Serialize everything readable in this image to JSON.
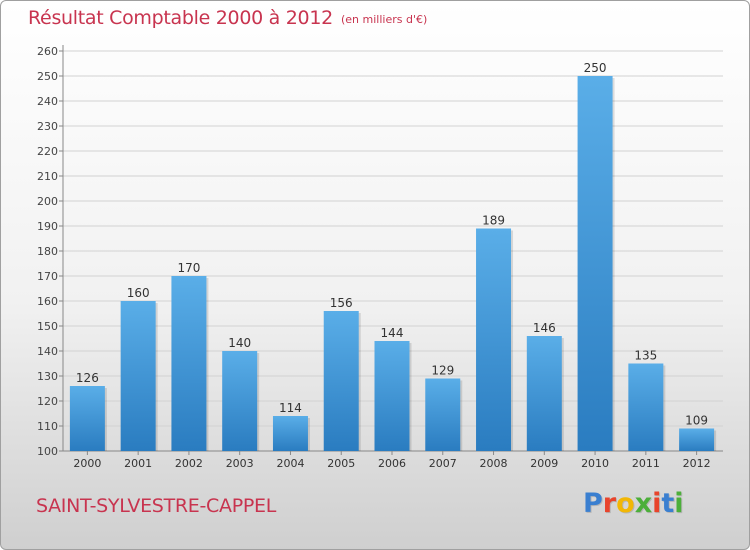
{
  "header": {
    "title": "Résultat Comptable 2000 à 2012",
    "subtitle": "(en milliers d'€)"
  },
  "footer": {
    "commune": "SAINT-SYLVESTRE-CAPPEL",
    "logo_text": "Proxiti",
    "logo_colors": [
      "#3a7fd0",
      "#e8442c",
      "#f2b705",
      "#4caf3a",
      "#e8442c",
      "#3a7fd0",
      "#4caf3a"
    ]
  },
  "colors": {
    "bar_top": "#5aaee8",
    "bar_bottom": "#2a7cc0",
    "text_accent": "#c8344f"
  },
  "chart_data": {
    "type": "bar",
    "title": "Résultat Comptable 2000 à 2012",
    "subtitle": "(en milliers d'€)",
    "categories": [
      "2000",
      "2001",
      "2002",
      "2003",
      "2004",
      "2005",
      "2006",
      "2007",
      "2008",
      "2009",
      "2010",
      "2011",
      "2012"
    ],
    "values": [
      126,
      160,
      170,
      140,
      114,
      156,
      144,
      129,
      189,
      146,
      250,
      135,
      109
    ],
    "ylim": [
      100,
      260
    ],
    "yticks": [
      100,
      110,
      120,
      130,
      140,
      150,
      160,
      170,
      180,
      190,
      200,
      210,
      220,
      230,
      240,
      250,
      260
    ],
    "grid": true,
    "legend": "none"
  }
}
